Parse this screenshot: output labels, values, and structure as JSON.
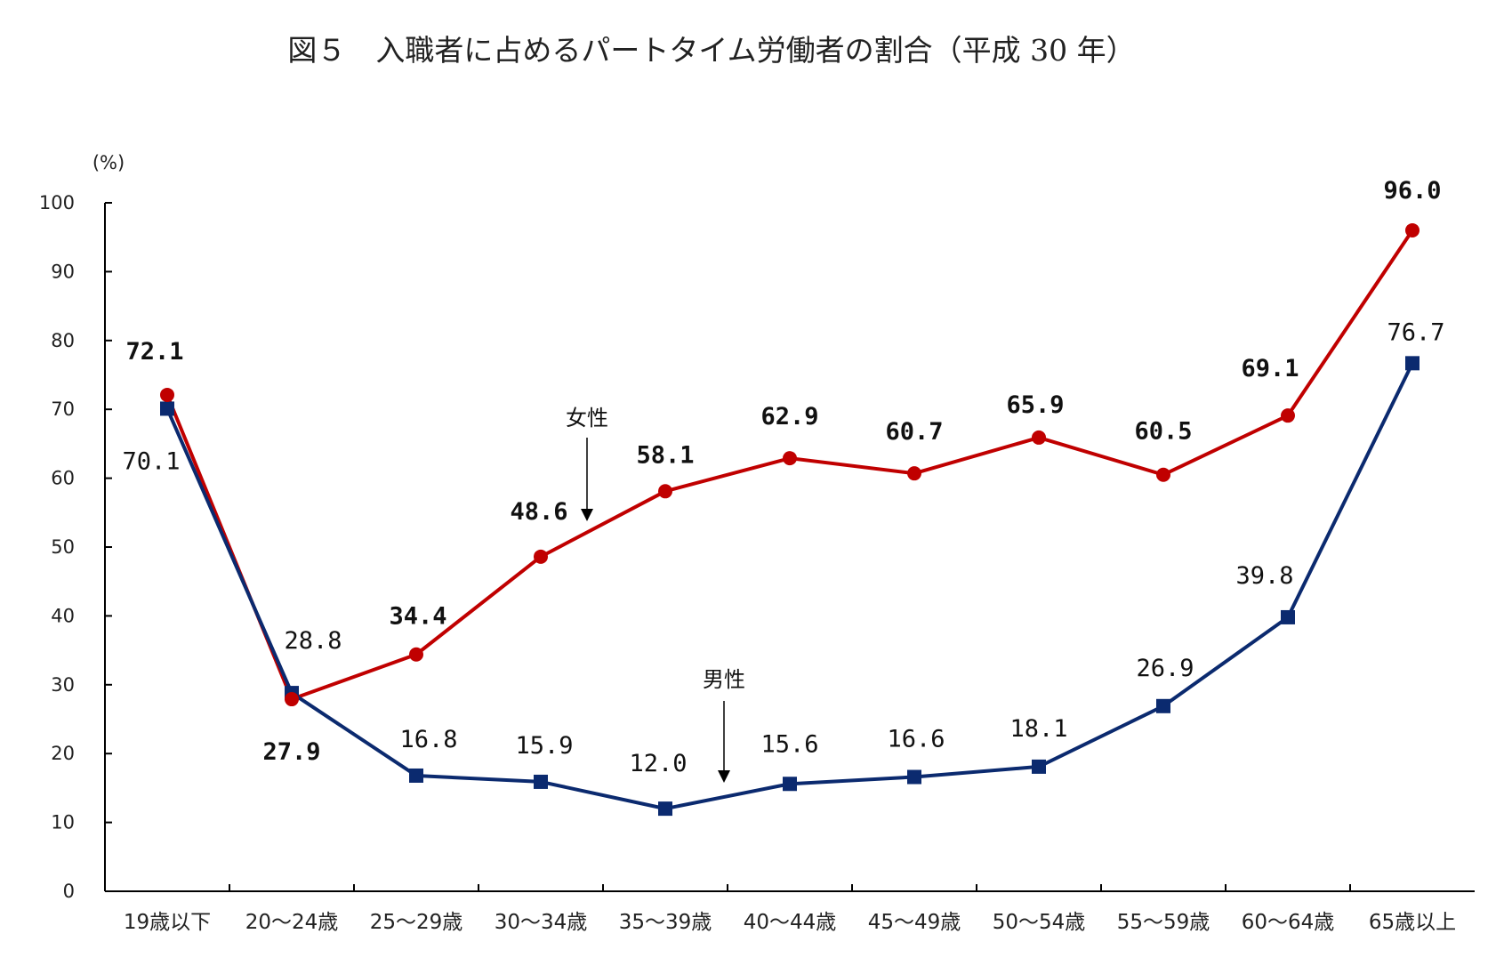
{
  "chart_data": {
    "type": "line",
    "title": "図５　入職者に占めるパートタイム労働者の割合（平成 30 年）",
    "ylabel": "(%)",
    "xlabel": "",
    "ylim": [
      0,
      100
    ],
    "yticks": [
      0,
      10,
      20,
      30,
      40,
      50,
      60,
      70,
      80,
      90,
      100
    ],
    "categories": [
      "19歳以下",
      "20～24歳",
      "25～29歳",
      "30～34歳",
      "35～39歳",
      "40～44歳",
      "45～49歳",
      "50～54歳",
      "55～59歳",
      "60～64歳",
      "65歳以上"
    ],
    "series": [
      {
        "name": "女性",
        "color": "#c00000",
        "marker": "circle",
        "values": [
          72.1,
          27.9,
          34.4,
          48.6,
          58.1,
          62.9,
          60.7,
          65.9,
          60.5,
          69.1,
          96.0
        ],
        "labels": [
          "72.1",
          "27.9",
          "34.4",
          "48.6",
          "58.1",
          "62.9",
          "60.7",
          "65.9",
          "60.5",
          "69.1",
          "96.0"
        ]
      },
      {
        "name": "男性",
        "color": "#0b2a6f",
        "marker": "square",
        "values": [
          70.1,
          28.8,
          16.8,
          15.9,
          12.0,
          15.6,
          16.6,
          18.1,
          26.9,
          39.8,
          76.7
        ],
        "labels": [
          "70.1",
          "28.8",
          "16.8",
          "15.9",
          "12.0",
          "15.6",
          "16.6",
          "18.1",
          "26.9",
          "39.8",
          "76.7"
        ]
      }
    ],
    "annotations": [
      {
        "text": "女性",
        "series": "女性"
      },
      {
        "text": "男性",
        "series": "男性"
      }
    ],
    "grid": false,
    "legend": "none"
  }
}
